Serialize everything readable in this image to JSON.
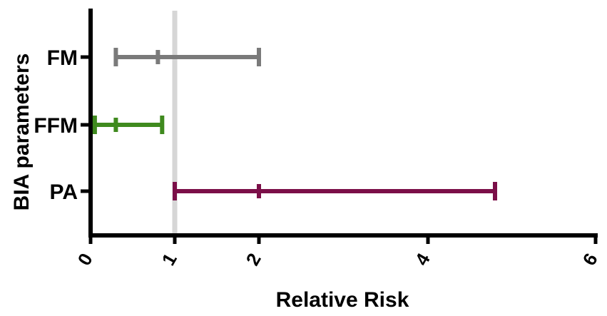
{
  "chart_data": {
    "type": "forest",
    "xlabel": "Relative Risk",
    "ylabel": "BIA  parameters",
    "xlim": [
      0,
      6
    ],
    "x_axis_scale": "custom-nonlinear",
    "x_tick_labels": [
      "0",
      "1",
      "2",
      "4",
      "6"
    ],
    "reference_line": {
      "x": 1,
      "color": "#d6d6d6"
    },
    "categories": [
      "FM",
      "FFM",
      "PA"
    ],
    "series": [
      {
        "category": "FM",
        "lower": 0.3,
        "estimate": 0.8,
        "upper": 2.0,
        "color": "#7a7a7a"
      },
      {
        "category": "FFM",
        "lower": 0.05,
        "estimate": 0.3,
        "upper": 0.85,
        "color": "#3f8a1e"
      },
      {
        "category": "PA",
        "lower": 1.0,
        "estimate": 2.0,
        "upper": 4.8,
        "color": "#7b0f48"
      }
    ]
  }
}
